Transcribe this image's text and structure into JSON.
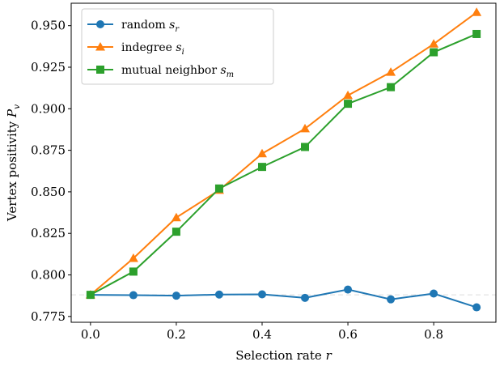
{
  "chart_data": {
    "type": "line",
    "title": "",
    "xlabel": "Selection rate r",
    "ylabel": "Vertex positivity P_v",
    "xlim": [
      -0.045,
      0.945
    ],
    "ylim": [
      0.7715,
      0.9635
    ],
    "x_ticks": [
      "0.0",
      "0.2",
      "0.4",
      "0.6",
      "0.8"
    ],
    "x_tick_values": [
      0.0,
      0.2,
      0.4,
      0.6,
      0.8
    ],
    "y_ticks": [
      "0.775",
      "0.800",
      "0.825",
      "0.850",
      "0.875",
      "0.900",
      "0.925",
      "0.950"
    ],
    "y_tick_values": [
      0.775,
      0.8,
      0.825,
      0.85,
      0.875,
      0.9,
      0.925,
      0.95
    ],
    "grid": false,
    "legend_position": "top-left",
    "reference_line": {
      "y": 0.788,
      "style": "dashed",
      "color": "#dddddd"
    },
    "x": [
      0.0,
      0.1,
      0.2,
      0.3,
      0.4,
      0.5,
      0.6,
      0.7,
      0.8,
      0.9
    ],
    "series": [
      {
        "name": "random s_r",
        "color": "#1f77b4",
        "marker": "circle",
        "values": [
          0.788,
          0.7878,
          0.7875,
          0.7882,
          0.7883,
          0.7862,
          0.7912,
          0.7853,
          0.7888,
          0.7805
        ]
      },
      {
        "name": "indegree s_i",
        "color": "#ff7f0e",
        "marker": "triangle",
        "values": [
          0.788,
          0.81,
          0.8345,
          0.851,
          0.873,
          0.888,
          0.908,
          0.922,
          0.939,
          0.958
        ]
      },
      {
        "name": "mutual neighbor s_m",
        "color": "#2ca02c",
        "marker": "square",
        "values": [
          0.788,
          0.802,
          0.826,
          0.852,
          0.865,
          0.877,
          0.903,
          0.913,
          0.934,
          0.945
        ]
      }
    ]
  }
}
